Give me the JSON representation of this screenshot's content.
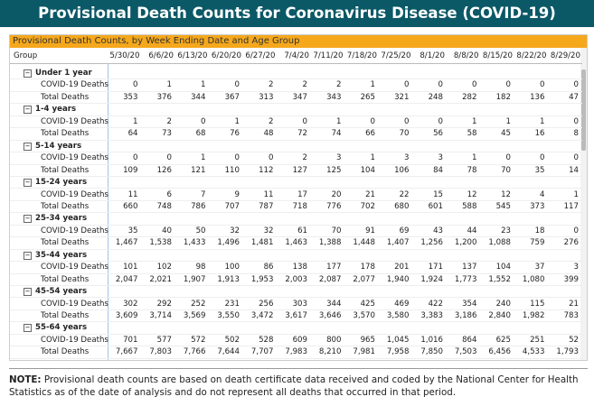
{
  "header": {
    "title": "Provisional Death Counts for Coronavirus Disease (COVID-19)"
  },
  "table": {
    "caption": "Provisional Death Counts, by Week Ending Date and Age Group",
    "columns": [
      "Group",
      "5/30/20",
      "6/6/20",
      "6/13/20",
      "6/20/20",
      "6/27/20",
      "7/4/20",
      "7/11/20",
      "7/18/20",
      "7/25/20",
      "8/1/20",
      "8/8/20",
      "8/15/20",
      "8/22/20",
      "8/29/20"
    ],
    "groups": [
      {
        "name": "Under 1 year",
        "rows": [
          {
            "label": "COVID-19 Deaths",
            "values": [
              "0",
              "1",
              "1",
              "0",
              "2",
              "2",
              "2",
              "1",
              "0",
              "0",
              "0",
              "0",
              "0",
              "0"
            ]
          },
          {
            "label": "Total Deaths",
            "values": [
              "353",
              "376",
              "344",
              "367",
              "313",
              "347",
              "343",
              "265",
              "321",
              "248",
              "282",
              "182",
              "136",
              "47"
            ]
          }
        ]
      },
      {
        "name": "1-4 years",
        "rows": [
          {
            "label": "COVID-19 Deaths",
            "values": [
              "1",
              "2",
              "0",
              "1",
              "2",
              "0",
              "1",
              "0",
              "0",
              "0",
              "1",
              "1",
              "1",
              "0"
            ]
          },
          {
            "label": "Total Deaths",
            "values": [
              "64",
              "73",
              "68",
              "76",
              "48",
              "72",
              "74",
              "66",
              "70",
              "56",
              "58",
              "45",
              "16",
              "8"
            ]
          }
        ]
      },
      {
        "name": "5-14 years",
        "rows": [
          {
            "label": "COVID-19 Deaths",
            "values": [
              "0",
              "0",
              "1",
              "0",
              "0",
              "2",
              "3",
              "1",
              "3",
              "3",
              "1",
              "0",
              "0",
              "0"
            ]
          },
          {
            "label": "Total Deaths",
            "values": [
              "109",
              "126",
              "121",
              "110",
              "112",
              "127",
              "125",
              "104",
              "106",
              "84",
              "78",
              "70",
              "35",
              "14"
            ]
          }
        ]
      },
      {
        "name": "15-24 years",
        "rows": [
          {
            "label": "COVID-19 Deaths",
            "values": [
              "11",
              "6",
              "7",
              "9",
              "11",
              "17",
              "20",
              "21",
              "22",
              "15",
              "12",
              "12",
              "4",
              "1"
            ]
          },
          {
            "label": "Total Deaths",
            "values": [
              "660",
              "748",
              "786",
              "707",
              "787",
              "718",
              "776",
              "702",
              "680",
              "601",
              "588",
              "545",
              "373",
              "117"
            ]
          }
        ]
      },
      {
        "name": "25-34 years",
        "rows": [
          {
            "label": "COVID-19 Deaths",
            "values": [
              "35",
              "40",
              "50",
              "32",
              "32",
              "61",
              "70",
              "91",
              "69",
              "43",
              "44",
              "23",
              "18",
              "0"
            ]
          },
          {
            "label": "Total Deaths",
            "values": [
              "1,467",
              "1,538",
              "1,433",
              "1,496",
              "1,481",
              "1,463",
              "1,388",
              "1,448",
              "1,407",
              "1,256",
              "1,200",
              "1,088",
              "759",
              "276"
            ]
          }
        ]
      },
      {
        "name": "35-44 years",
        "rows": [
          {
            "label": "COVID-19 Deaths",
            "values": [
              "101",
              "102",
              "98",
              "100",
              "86",
              "138",
              "177",
              "178",
              "201",
              "171",
              "137",
              "104",
              "37",
              "3"
            ]
          },
          {
            "label": "Total Deaths",
            "values": [
              "2,047",
              "2,021",
              "1,907",
              "1,913",
              "1,953",
              "2,003",
              "2,087",
              "2,077",
              "1,940",
              "1,924",
              "1,773",
              "1,552",
              "1,080",
              "399"
            ]
          }
        ]
      },
      {
        "name": "45-54 years",
        "rows": [
          {
            "label": "COVID-19 Deaths",
            "values": [
              "302",
              "292",
              "252",
              "231",
              "256",
              "303",
              "344",
              "425",
              "469",
              "422",
              "354",
              "240",
              "115",
              "21"
            ]
          },
          {
            "label": "Total Deaths",
            "values": [
              "3,609",
              "3,714",
              "3,569",
              "3,550",
              "3,472",
              "3,617",
              "3,646",
              "3,570",
              "3,580",
              "3,383",
              "3,186",
              "2,840",
              "1,982",
              "783"
            ]
          }
        ]
      },
      {
        "name": "55-64 years",
        "rows": [
          {
            "label": "COVID-19 Deaths",
            "values": [
              "701",
              "577",
              "572",
              "502",
              "528",
              "609",
              "800",
              "965",
              "1,045",
              "1,016",
              "864",
              "625",
              "251",
              "52"
            ]
          },
          {
            "label": "Total Deaths",
            "values": [
              "7,667",
              "7,803",
              "7,766",
              "7,644",
              "7,707",
              "7,983",
              "8,210",
              "7,981",
              "7,958",
              "7,850",
              "7,503",
              "6,456",
              "4,533",
              "1,793"
            ]
          }
        ]
      }
    ]
  },
  "note": {
    "label": "NOTE:",
    "text": "Provisional death counts are based on death certificate data received and coded by the National Center for Health Statistics as of the date of analysis and do not represent all deaths that occurred in that period."
  }
}
